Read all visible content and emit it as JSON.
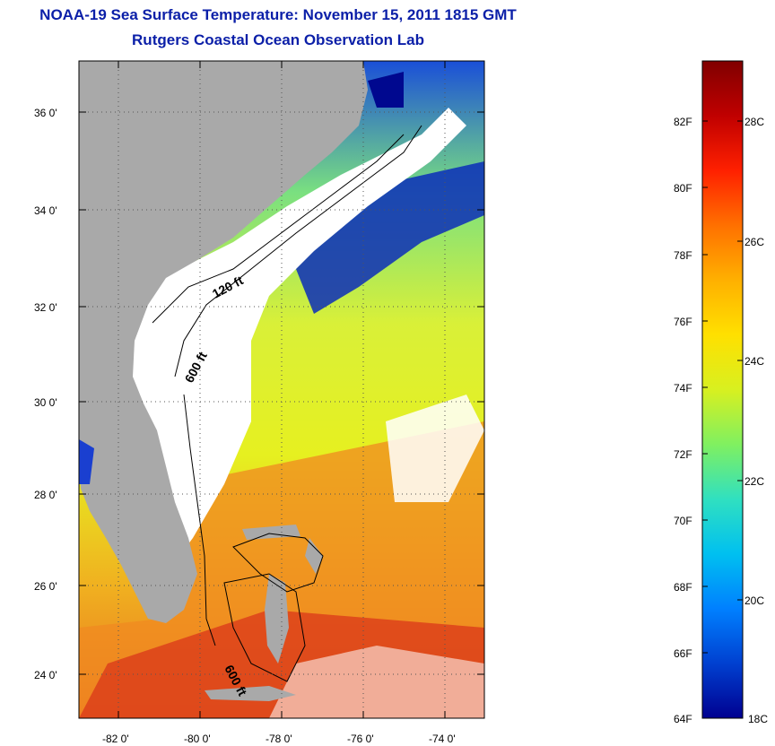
{
  "header": {
    "title": "NOAA-19 Sea Surface Temperature:  November 15, 2011 1815 GMT",
    "subtitle": "Rutgers Coastal Ocean Observation Lab"
  },
  "map": {
    "lat_labels": [
      "36 0'",
      "34 0'",
      "32 0'",
      "30 0'",
      "28 0'",
      "26 0'",
      "24 0'"
    ],
    "lon_labels": [
      "-82 0'",
      "-80 0'",
      "-78 0'",
      "-76 0'",
      "-74 0'"
    ],
    "contour_labels": [
      "120 ft",
      "600 ft",
      "600 ft"
    ],
    "colors": {
      "land": "#a9a9a9",
      "cloud": "#ffffff",
      "cold": "#00008f",
      "warm": "#d42a1a"
    }
  },
  "colorbar": {
    "fahrenheit_labels": [
      "82F",
      "80F",
      "78F",
      "76F",
      "74F",
      "72F",
      "70F",
      "68F",
      "66F",
      "64F"
    ],
    "celsius_labels": [
      "28C",
      "26C",
      "24C",
      "22C",
      "20C",
      "18C"
    ],
    "gradient": [
      "#800000",
      "#c00000",
      "#ff2000",
      "#ff7000",
      "#ffb000",
      "#ffe000",
      "#d8f020",
      "#80f060",
      "#30e0c0",
      "#00c0f0",
      "#0080ff",
      "#0040d0",
      "#000090"
    ]
  }
}
